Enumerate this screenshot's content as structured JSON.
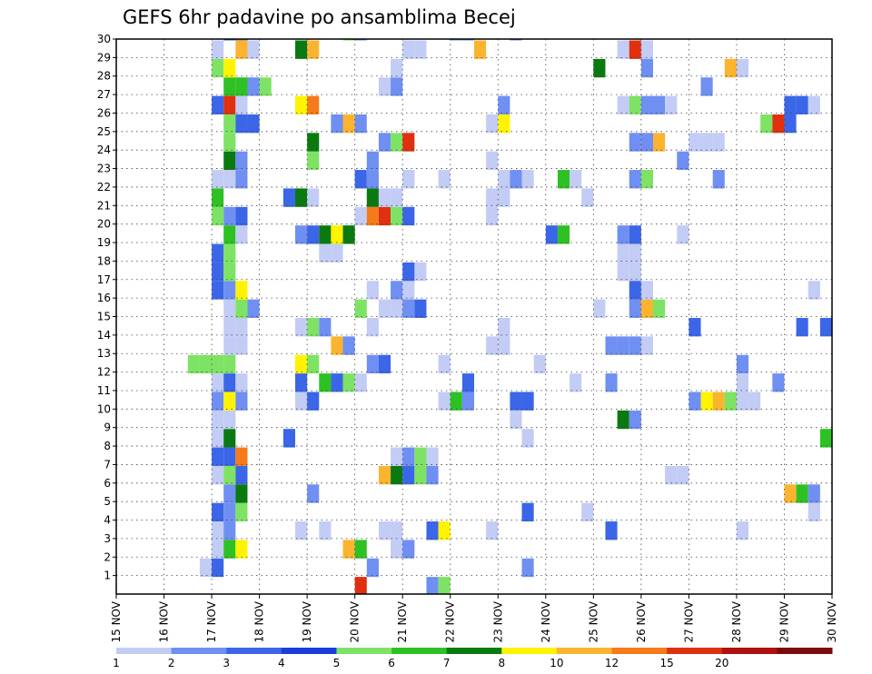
{
  "chart_data": {
    "type": "heatmap",
    "title": "GEFS 6hr padavine po ansamblima Becej",
    "xlabel": "",
    "ylabel": "",
    "x_tick_labels": [
      "15 NOV",
      "16 NOV",
      "17 NOV",
      "18 NOV",
      "19 NOV",
      "20 NOV",
      "21 NOV",
      "22 NOV",
      "23 NOV",
      "24 NOV",
      "25 NOV",
      "26 NOV",
      "27 NOV",
      "28 NOV",
      "29 NOV",
      "30 NOV"
    ],
    "y_tick_labels": [
      "1",
      "2",
      "3",
      "4",
      "5",
      "6",
      "7",
      "8",
      "9",
      "10",
      "11",
      "12",
      "13",
      "14",
      "15",
      "16",
      "17",
      "18",
      "19",
      "20",
      "21",
      "22",
      "23",
      "24",
      "25",
      "26",
      "27",
      "28",
      "29",
      "30"
    ],
    "x_range": [
      "15 NOV",
      "30 NOV"
    ],
    "y_range": [
      1,
      30
    ],
    "time_step_hours": 6,
    "grid": true,
    "legend_position": "bottom",
    "legend": {
      "thresholds": [
        "1",
        "2",
        "3",
        "4",
        "5",
        "6",
        "7",
        "8",
        "10",
        "12",
        "15",
        "20"
      ],
      "colors": [
        "#c2ccf5",
        "#6f8ff2",
        "#3b66e8",
        "#1a3fd9",
        "#7ee364",
        "#2ec124",
        "#0a7a10",
        "#fff300",
        "#fbb430",
        "#f57a1a",
        "#e0300f",
        "#b01010",
        "#7a0c0c"
      ]
    },
    "member_labels": [
      "1",
      "2",
      "3",
      "4",
      "5",
      "6",
      "7",
      "8",
      "9",
      "10",
      "11",
      "12",
      "13",
      "14",
      "15",
      "16",
      "17",
      "18",
      "19",
      "20",
      "21",
      "22",
      "23",
      "24",
      "25",
      "26",
      "27",
      "28",
      "29",
      "30"
    ],
    "cells": [
      [
        "16 NOV 18Z",
        "1",
        1
      ],
      [
        "17 NOV 00Z",
        "1",
        3
      ],
      [
        "17 NOV 00Z",
        "2",
        1
      ],
      [
        "17 NOV 00Z",
        "3",
        1
      ],
      [
        "17 NOV 06Z",
        "2",
        6
      ],
      [
        "17 NOV 12Z",
        "2",
        8
      ],
      [
        "17 NOV 06Z",
        "3",
        2
      ],
      [
        "17 NOV 00Z",
        "4",
        3
      ],
      [
        "17 NOV 06Z",
        "4",
        2
      ],
      [
        "17 NOV 12Z",
        "4",
        5
      ],
      [
        "17 NOV 06Z",
        "5",
        2
      ],
      [
        "17 NOV 12Z",
        "5",
        7
      ],
      [
        "17 NOV 00Z",
        "6",
        1
      ],
      [
        "17 NOV 06Z",
        "6",
        5
      ],
      [
        "17 NOV 12Z",
        "6",
        3
      ],
      [
        "17 NOV 00Z",
        "7",
        3
      ],
      [
        "17 NOV 06Z",
        "7",
        3
      ],
      [
        "17 NOV 12Z",
        "7",
        12
      ],
      [
        "17 NOV 00Z",
        "8",
        1
      ],
      [
        "17 NOV 06Z",
        "8",
        7
      ],
      [
        "17 NOV 00Z",
        "9",
        1
      ],
      [
        "17 NOV 06Z",
        "9",
        1
      ],
      [
        "17 NOV 00Z",
        "10",
        2
      ],
      [
        "17 NOV 06Z",
        "10",
        8
      ],
      [
        "17 NOV 12Z",
        "10",
        2
      ],
      [
        "17 NOV 00Z",
        "11",
        1
      ],
      [
        "17 NOV 06Z",
        "11",
        3
      ],
      [
        "17 NOV 12Z",
        "11",
        1
      ],
      [
        "16 NOV 12Z",
        "12",
        5
      ],
      [
        "16 NOV 18Z",
        "12",
        5
      ],
      [
        "17 NOV 00Z",
        "12",
        5
      ],
      [
        "17 NOV 06Z",
        "12",
        5
      ],
      [
        "17 NOV 06Z",
        "13",
        1
      ],
      [
        "17 NOV 12Z",
        "13",
        1
      ],
      [
        "17 NOV 06Z",
        "14",
        1
      ],
      [
        "17 NOV 12Z",
        "14",
        1
      ],
      [
        "17 NOV 06Z",
        "15",
        1
      ],
      [
        "17 NOV 12Z",
        "15",
        5
      ],
      [
        "17 NOV 18Z",
        "15",
        2
      ],
      [
        "17 NOV 00Z",
        "16",
        3
      ],
      [
        "17 NOV 06Z",
        "16",
        2
      ],
      [
        "17 NOV 12Z",
        "16",
        8
      ],
      [
        "17 NOV 00Z",
        "17",
        3
      ],
      [
        "17 NOV 06Z",
        "17",
        5
      ],
      [
        "17 NOV 00Z",
        "18",
        3
      ],
      [
        "17 NOV 06Z",
        "18",
        5
      ],
      [
        "17 NOV 06Z",
        "19",
        6
      ],
      [
        "17 NOV 12Z",
        "19",
        1
      ],
      [
        "17 NOV 00Z",
        "20",
        5
      ],
      [
        "17 NOV 06Z",
        "20",
        2
      ],
      [
        "17 NOV 12Z",
        "20",
        3
      ],
      [
        "17 NOV 00Z",
        "21",
        6
      ],
      [
        "17 NOV 00Z",
        "22",
        1
      ],
      [
        "17 NOV 06Z",
        "22",
        1
      ],
      [
        "17 NOV 12Z",
        "22",
        2
      ],
      [
        "17 NOV 06Z",
        "23",
        7
      ],
      [
        "17 NOV 12Z",
        "23",
        2
      ],
      [
        "17 NOV 06Z",
        "24",
        5
      ],
      [
        "17 NOV 06Z",
        "25",
        5
      ],
      [
        "17 NOV 12Z",
        "25",
        3
      ],
      [
        "17 NOV 18Z",
        "25",
        3
      ],
      [
        "17 NOV 00Z",
        "26",
        3
      ],
      [
        "17 NOV 06Z",
        "26",
        15
      ],
      [
        "17 NOV 12Z",
        "26",
        1
      ],
      [
        "17 NOV 06Z",
        "27",
        6
      ],
      [
        "17 NOV 12Z",
        "27",
        6
      ],
      [
        "17 NOV 18Z",
        "27",
        2
      ],
      [
        "18 NOV 00Z",
        "27",
        5
      ],
      [
        "17 NOV 00Z",
        "28",
        5
      ],
      [
        "17 NOV 06Z",
        "28",
        8
      ],
      [
        "17 NOV 00Z",
        "29",
        1
      ],
      [
        "17 NOV 12Z",
        "29",
        10
      ],
      [
        "17 NOV 18Z",
        "29",
        1
      ],
      [
        "17 NOV 06Z",
        "30",
        3
      ],
      [
        "17 NOV 12Z",
        "30",
        2
      ],
      [
        "18 NOV 18Z",
        "3",
        1
      ],
      [
        "19 NOV 06Z",
        "3",
        1
      ],
      [
        "19 NOV 18Z",
        "2",
        10
      ],
      [
        "20 NOV 00Z",
        "2",
        6
      ],
      [
        "20 NOV 06Z",
        "1",
        2
      ],
      [
        "19 NOV 00Z",
        "5",
        2
      ],
      [
        "18 NOV 12Z",
        "8",
        3
      ],
      [
        "19 NOV 12Z",
        "13",
        10
      ],
      [
        "19 NOV 18Z",
        "13",
        2
      ],
      [
        "18 NOV 18Z",
        "14",
        1
      ],
      [
        "19 NOV 00Z",
        "14",
        5
      ],
      [
        "19 NOV 06Z",
        "14",
        2
      ],
      [
        "18 NOV 18Z",
        "10",
        1
      ],
      [
        "19 NOV 00Z",
        "10",
        3
      ],
      [
        "18 NOV 18Z",
        "11",
        3
      ],
      [
        "19 NOV 06Z",
        "11",
        6
      ],
      [
        "19 NOV 12Z",
        "11",
        3
      ],
      [
        "19 NOV 18Z",
        "11",
        5
      ],
      [
        "20 NOV 00Z",
        "11",
        1
      ],
      [
        "18 NOV 18Z",
        "12",
        8
      ],
      [
        "19 NOV 00Z",
        "12",
        5
      ],
      [
        "18 NOV 18Z",
        "19",
        2
      ],
      [
        "19 NOV 00Z",
        "19",
        3
      ],
      [
        "19 NOV 06Z",
        "19",
        7
      ],
      [
        "19 NOV 12Z",
        "19",
        8
      ],
      [
        "19 NOV 18Z",
        "19",
        7
      ],
      [
        "19 NOV 06Z",
        "18",
        1
      ],
      [
        "19 NOV 12Z",
        "18",
        1
      ],
      [
        "18 NOV 12Z",
        "21",
        3
      ],
      [
        "18 NOV 18Z",
        "21",
        7
      ],
      [
        "19 NOV 00Z",
        "21",
        1
      ],
      [
        "19 NOV 00Z",
        "23",
        5
      ],
      [
        "19 NOV 00Z",
        "24",
        7
      ],
      [
        "19 NOV 12Z",
        "25",
        2
      ],
      [
        "19 NOV 18Z",
        "25",
        10
      ],
      [
        "20 NOV 00Z",
        "25",
        2
      ],
      [
        "18 NOV 18Z",
        "26",
        8
      ],
      [
        "19 NOV 00Z",
        "26",
        12
      ],
      [
        "18 NOV 18Z",
        "29",
        7
      ],
      [
        "19 NOV 00Z",
        "29",
        10
      ],
      [
        "19 NOV 18Z",
        "30",
        5
      ],
      [
        "20 NOV 00Z",
        "30",
        2
      ],
      [
        "20 NOV 00Z",
        "20",
        1
      ],
      [
        "20 NOV 06Z",
        "20",
        12
      ],
      [
        "20 NOV 12Z",
        "20",
        15
      ],
      [
        "20 NOV 18Z",
        "20",
        5
      ],
      [
        "21 NOV 00Z",
        "20",
        3
      ],
      [
        "20 NOV 06Z",
        "21",
        7
      ],
      [
        "20 NOV 12Z",
        "21",
        1
      ],
      [
        "20 NOV 18Z",
        "21",
        1
      ],
      [
        "20 NOV 00Z",
        "22",
        3
      ],
      [
        "20 NOV 06Z",
        "22",
        2
      ],
      [
        "21 NOV 00Z",
        "22",
        1
      ],
      [
        "20 NOV 06Z",
        "23",
        2
      ],
      [
        "20 NOV 12Z",
        "24",
        2
      ],
      [
        "20 NOV 18Z",
        "24",
        5
      ],
      [
        "21 NOV 00Z",
        "24",
        15
      ],
      [
        "20 NOV 12Z",
        "27",
        1
      ],
      [
        "20 NOV 18Z",
        "27",
        2
      ],
      [
        "20 NOV 18Z",
        "28",
        1
      ],
      [
        "21 NOV 00Z",
        "29",
        1
      ],
      [
        "21 NOV 06Z",
        "29",
        1
      ],
      [
        "20 NOV 06Z",
        "16",
        1
      ],
      [
        "20 NOV 18Z",
        "16",
        2
      ],
      [
        "21 NOV 00Z",
        "16",
        1
      ],
      [
        "20 NOV 12Z",
        "15",
        1
      ],
      [
        "20 NOV 18Z",
        "15",
        1
      ],
      [
        "21 NOV 00Z",
        "15",
        2
      ],
      [
        "21 NOV 06Z",
        "15",
        3
      ],
      [
        "20 NOV 00Z",
        "15",
        5
      ],
      [
        "20 NOV 06Z",
        "14",
        1
      ],
      [
        "20 NOV 06Z",
        "12",
        2
      ],
      [
        "20 NOV 12Z",
        "12",
        3
      ],
      [
        "20 NOV 12Z",
        "6",
        10
      ],
      [
        "20 NOV 18Z",
        "6",
        7
      ],
      [
        "21 NOV 00Z",
        "6",
        3
      ],
      [
        "21 NOV 06Z",
        "6",
        5
      ],
      [
        "21 NOV 12Z",
        "6",
        2
      ],
      [
        "20 NOV 18Z",
        "7",
        1
      ],
      [
        "21 NOV 00Z",
        "7",
        2
      ],
      [
        "21 NOV 06Z",
        "7",
        5
      ],
      [
        "21 NOV 12Z",
        "7",
        1
      ],
      [
        "20 NOV 12Z",
        "3",
        1
      ],
      [
        "20 NOV 18Z",
        "3",
        1
      ],
      [
        "21 NOV 12Z",
        "3",
        3
      ],
      [
        "21 NOV 18Z",
        "3",
        8
      ],
      [
        "20 NOV 18Z",
        "2",
        1
      ],
      [
        "21 NOV 00Z",
        "2",
        2
      ],
      [
        "20 NOV 00Z",
        "0",
        15
      ],
      [
        "21 NOV 12Z",
        "0",
        2
      ],
      [
        "21 NOV 18Z",
        "0",
        5
      ],
      [
        "21 NOV 18Z",
        "10",
        1
      ],
      [
        "22 NOV 00Z",
        "10",
        6
      ],
      [
        "22 NOV 06Z",
        "10",
        2
      ],
      [
        "22 NOV 06Z",
        "11",
        3
      ],
      [
        "21 NOV 18Z",
        "12",
        1
      ],
      [
        "21 NOV 00Z",
        "22",
        1
      ],
      [
        "21 NOV 18Z",
        "22",
        1
      ],
      [
        "21 NOV 06Z",
        "17",
        1
      ],
      [
        "21 NOV 00Z",
        "17",
        3
      ],
      [
        "22 NOV 00Z",
        "30",
        2
      ],
      [
        "22 NOV 06Z",
        "30",
        2
      ],
      [
        "22 NOV 18Z",
        "23",
        1
      ],
      [
        "23 NOV 06Z",
        "10",
        3
      ],
      [
        "23 NOV 12Z",
        "10",
        3
      ],
      [
        "23 NOV 06Z",
        "9",
        1
      ],
      [
        "22 NOV 18Z",
        "13",
        1
      ],
      [
        "23 NOV 00Z",
        "13",
        1
      ],
      [
        "23 NOV 00Z",
        "14",
        1
      ],
      [
        "23 NOV 12Z",
        "8",
        1
      ],
      [
        "23 NOV 12Z",
        "4",
        3
      ],
      [
        "23 NOV 12Z",
        "1",
        2
      ],
      [
        "22 NOV 18Z",
        "3",
        1
      ],
      [
        "22 NOV 18Z",
        "20",
        1
      ],
      [
        "22 NOV 18Z",
        "21",
        1
      ],
      [
        "23 NOV 00Z",
        "21",
        1
      ],
      [
        "23 NOV 00Z",
        "22",
        1
      ],
      [
        "23 NOV 06Z",
        "22",
        2
      ],
      [
        "23 NOV 12Z",
        "22",
        1
      ],
      [
        "22 NOV 18Z",
        "25",
        1
      ],
      [
        "23 NOV 00Z",
        "25",
        8
      ],
      [
        "23 NOV 00Z",
        "26",
        2
      ],
      [
        "22 NOV 12Z",
        "29",
        10
      ],
      [
        "23 NOV 06Z",
        "30",
        2
      ],
      [
        "23 NOV 18Z",
        "12",
        1
      ],
      [
        "24 NOV 00Z",
        "19",
        3
      ],
      [
        "24 NOV 06Z",
        "19",
        6
      ],
      [
        "24 NOV 06Z",
        "22",
        6
      ],
      [
        "24 NOV 12Z",
        "22",
        1
      ],
      [
        "24 NOV 18Z",
        "21",
        1
      ],
      [
        "24 NOV 12Z",
        "11",
        1
      ],
      [
        "24 NOV 18Z",
        "4",
        1
      ],
      [
        "25 NOV 00Z",
        "15",
        1
      ],
      [
        "25 NOV 06Z",
        "11",
        2
      ],
      [
        "25 NOV 06Z",
        "3",
        3
      ],
      [
        "25 NOV 06Z",
        "13",
        2
      ],
      [
        "25 NOV 12Z",
        "13",
        2
      ],
      [
        "25 NOV 18Z",
        "13",
        2
      ],
      [
        "26 NOV 00Z",
        "13",
        1
      ],
      [
        "25 NOV 12Z",
        "9",
        7
      ],
      [
        "25 NOV 18Z",
        "9",
        2
      ],
      [
        "25 NOV 12Z",
        "19",
        2
      ],
      [
        "25 NOV 18Z",
        "19",
        3
      ],
      [
        "25 NOV 12Z",
        "17",
        1
      ],
      [
        "25 NOV 18Z",
        "17",
        1
      ],
      [
        "25 NOV 12Z",
        "18",
        1
      ],
      [
        "25 NOV 18Z",
        "18",
        1
      ],
      [
        "25 NOV 18Z",
        "15",
        2
      ],
      [
        "26 NOV 00Z",
        "15",
        10
      ],
      [
        "26 NOV 06Z",
        "15",
        5
      ],
      [
        "25 NOV 18Z",
        "16",
        3
      ],
      [
        "26 NOV 00Z",
        "16",
        1
      ],
      [
        "25 NOV 18Z",
        "22",
        2
      ],
      [
        "26 NOV 00Z",
        "22",
        5
      ],
      [
        "25 NOV 18Z",
        "24",
        2
      ],
      [
        "26 NOV 00Z",
        "24",
        2
      ],
      [
        "26 NOV 06Z",
        "24",
        10
      ],
      [
        "25 NOV 12Z",
        "26",
        1
      ],
      [
        "25 NOV 18Z",
        "26",
        5
      ],
      [
        "26 NOV 00Z",
        "26",
        2
      ],
      [
        "26 NOV 06Z",
        "26",
        2
      ],
      [
        "26 NOV 12Z",
        "26",
        1
      ],
      [
        "25 NOV 00Z",
        "28",
        7
      ],
      [
        "26 NOV 00Z",
        "28",
        2
      ],
      [
        "25 NOV 12Z",
        "29",
        1
      ],
      [
        "25 NOV 18Z",
        "29",
        15
      ],
      [
        "26 NOV 00Z",
        "29",
        1
      ],
      [
        "26 NOV 12Z",
        "6",
        1
      ],
      [
        "26 NOV 18Z",
        "6",
        1
      ],
      [
        "27 NOV 00Z",
        "14",
        3
      ],
      [
        "27 NOV 00Z",
        "10",
        2
      ],
      [
        "27 NOV 06Z",
        "10",
        8
      ],
      [
        "27 NOV 12Z",
        "10",
        10
      ],
      [
        "27 NOV 18Z",
        "10",
        5
      ],
      [
        "28 NOV 00Z",
        "10",
        1
      ],
      [
        "28 NOV 06Z",
        "10",
        1
      ],
      [
        "26 NOV 18Z",
        "23",
        2
      ],
      [
        "27 NOV 00Z",
        "24",
        1
      ],
      [
        "27 NOV 06Z",
        "24",
        1
      ],
      [
        "27 NOV 12Z",
        "24",
        1
      ],
      [
        "27 NOV 06Z",
        "27",
        2
      ],
      [
        "27 NOV 12Z",
        "22",
        2
      ],
      [
        "26 NOV 18Z",
        "19",
        1
      ],
      [
        "28 NOV 00Z",
        "12",
        2
      ],
      [
        "28 NOV 00Z",
        "3",
        1
      ],
      [
        "28 NOV 00Z",
        "11",
        1
      ],
      [
        "27 NOV 18Z",
        "28",
        10
      ],
      [
        "28 NOV 00Z",
        "28",
        1
      ],
      [
        "28 NOV 12Z",
        "25",
        5
      ],
      [
        "28 NOV 18Z",
        "25",
        15
      ],
      [
        "29 NOV 00Z",
        "25",
        3
      ],
      [
        "29 NOV 00Z",
        "26",
        3
      ],
      [
        "29 NOV 06Z",
        "26",
        3
      ],
      [
        "29 NOV 12Z",
        "26",
        1
      ],
      [
        "28 NOV 18Z",
        "11",
        2
      ],
      [
        "29 NOV 00Z",
        "5",
        10
      ],
      [
        "29 NOV 06Z",
        "5",
        6
      ],
      [
        "29 NOV 12Z",
        "5",
        2
      ],
      [
        "29 NOV 12Z",
        "4",
        1
      ],
      [
        "29 NOV 12Z",
        "16",
        1
      ],
      [
        "29 NOV 06Z",
        "14",
        3
      ],
      [
        "29 NOV 18Z",
        "14",
        3
      ],
      [
        "29 NOV 18Z",
        "8",
        6
      ]
    ]
  }
}
